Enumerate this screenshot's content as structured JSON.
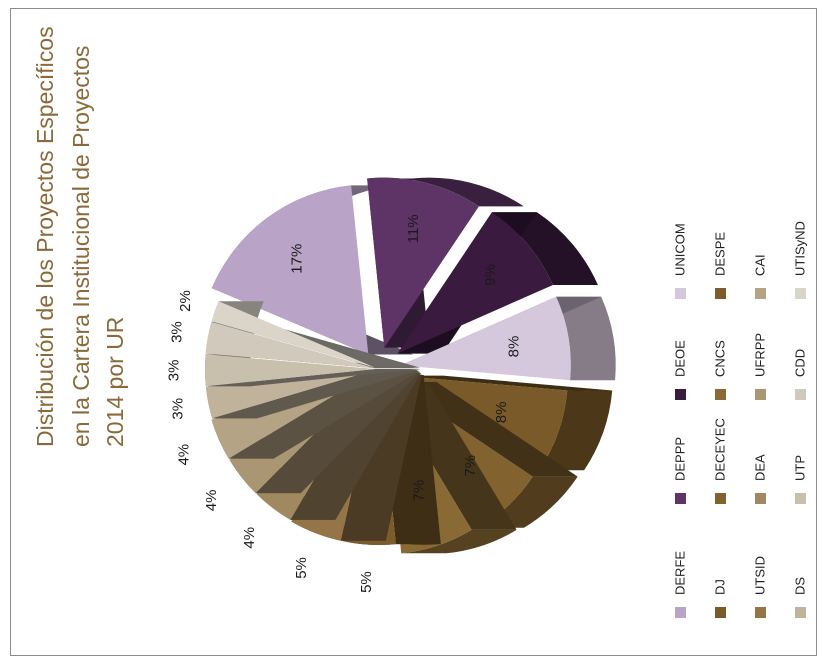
{
  "chart_data": {
    "type": "pie",
    "title_lines": [
      "Distribución de los Proyectos Específicos",
      "en la Cartera Institucional de Proyectos",
      "2014 por UR"
    ],
    "slices": [
      {
        "label": "DERFE",
        "value": 17,
        "text": "17%",
        "color": "#b9a3c6"
      },
      {
        "label": "DEPPP",
        "value": 11,
        "text": "11%",
        "color": "#5e3366"
      },
      {
        "label": "DEOE",
        "value": 9,
        "text": "9%",
        "color": "#3a1a3f"
      },
      {
        "label": "UNICOM",
        "value": 8,
        "text": "8%",
        "color": "#d6c8dc"
      },
      {
        "label": "DJ",
        "value": 8,
        "text": "8%",
        "color": "#7a5a28"
      },
      {
        "label": "DECEYEC",
        "value": 7,
        "text": "7%",
        "color": "#82622e"
      },
      {
        "label": "CNCS",
        "value": 7,
        "text": "7%",
        "color": "#8a6a34"
      },
      {
        "label": "DESPE",
        "value": 5,
        "text": "5%",
        "color": "#7d5c2c"
      },
      {
        "label": "UTSID",
        "value": 5,
        "text": "5%",
        "color": "#957548"
      },
      {
        "label": "DEA",
        "value": 4,
        "text": "4%",
        "color": "#a08860"
      },
      {
        "label": "UFRPP",
        "value": 4,
        "text": "4%",
        "color": "#ab9674"
      },
      {
        "label": "CAI",
        "value": 4,
        "text": "4%",
        "color": "#b5a386"
      },
      {
        "label": "DS",
        "value": 3,
        "text": "3%",
        "color": "#c0b29b"
      },
      {
        "label": "UTP",
        "value": 3,
        "text": "3%",
        "color": "#c9bfad"
      },
      {
        "label": "CDD",
        "value": 3,
        "text": "3%",
        "color": "#d1c9bb"
      },
      {
        "label": "UTISyND",
        "value": 2,
        "text": "2%",
        "color": "#dad4c9"
      }
    ],
    "legend_position": "right"
  }
}
